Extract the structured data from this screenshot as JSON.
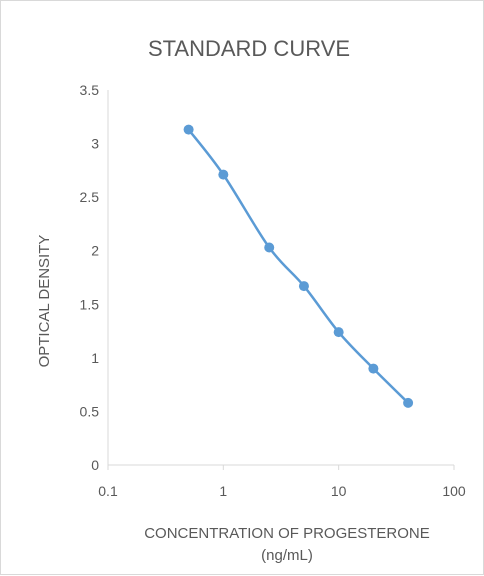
{
  "chart_data": {
    "type": "scatter",
    "title": "STANDARD CURVE",
    "xlabel": [
      "CONCENTRATION OF PROGESTERONE",
      "(ng/mL)"
    ],
    "ylabel": "OPTICAL DENSITY",
    "x_scale": "log",
    "xlim": [
      0.1,
      100
    ],
    "ylim": [
      0,
      3.5
    ],
    "x_ticks": [
      0.1,
      1,
      10,
      100
    ],
    "x_tick_labels": [
      "0.1",
      "1",
      "10",
      "100"
    ],
    "y_ticks": [
      0,
      0.5,
      1,
      1.5,
      2,
      2.5,
      3,
      3.5
    ],
    "y_tick_labels": [
      "0",
      "0.5",
      "1",
      "1.5",
      "2",
      "2.5",
      "3",
      "3.5"
    ],
    "grid": false,
    "legend": "none",
    "smooth_line": true,
    "series": [
      {
        "color": "#5b9bd5",
        "x": [
          0.5,
          1,
          2.5,
          5,
          10,
          20,
          40
        ],
        "y": [
          3.13,
          2.71,
          2.03,
          1.67,
          1.24,
          0.9,
          0.58
        ]
      }
    ]
  }
}
